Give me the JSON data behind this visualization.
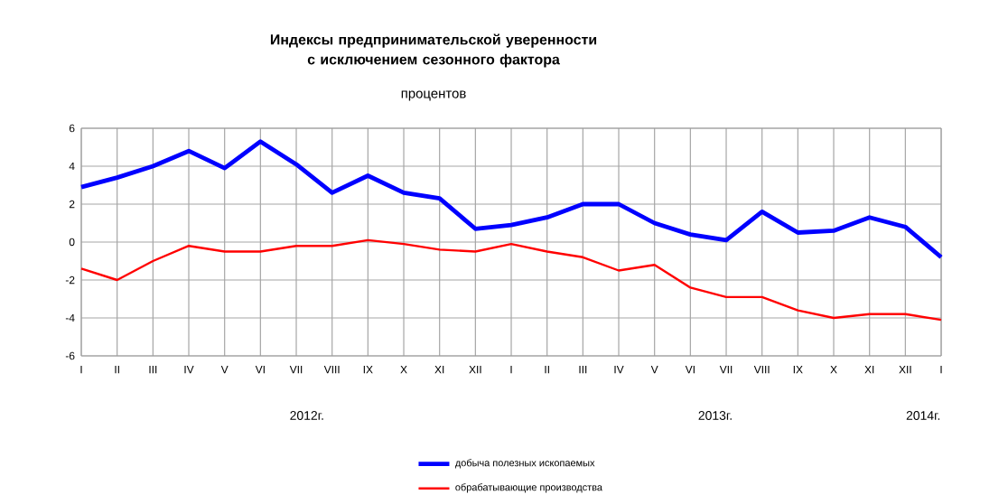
{
  "chart_data": {
    "type": "line",
    "title": "Индексы предпринимательской уверенности с исключением сезонного фактора",
    "subtitle": "процентов",
    "categories": [
      "I",
      "II",
      "III",
      "IV",
      "V",
      "VI",
      "VII",
      "VIII",
      "IX",
      "X",
      "XI",
      "XII",
      "I",
      "II",
      "III",
      "IV",
      "V",
      "VI",
      "VII",
      "VIII",
      "IX",
      "X",
      "XI",
      "XII",
      "I"
    ],
    "series": [
      {
        "name": "добыча полезных ископаемых",
        "color": "#0000ff",
        "values": [
          2.9,
          3.4,
          4.0,
          4.8,
          3.9,
          5.3,
          4.1,
          2.6,
          3.5,
          2.6,
          2.3,
          0.7,
          0.9,
          1.3,
          2.0,
          2.0,
          1.0,
          0.4,
          0.1,
          1.6,
          0.5,
          0.6,
          1.3,
          0.8,
          -0.8
        ]
      },
      {
        "name": "обрабатывающие производства",
        "color": "#ff0000",
        "values": [
          -1.4,
          -2.0,
          -1.0,
          -0.2,
          -0.5,
          -0.5,
          -0.2,
          -0.2,
          0.1,
          -0.1,
          -0.4,
          -0.5,
          -0.1,
          -0.5,
          -0.8,
          -1.5,
          -1.2,
          -2.4,
          -2.9,
          -2.9,
          -3.6,
          -4.0,
          -3.8,
          -3.8,
          -4.1
        ]
      }
    ],
    "ylim": [
      -6,
      6
    ],
    "yticks": [
      -6,
      -4,
      -2,
      0,
      2,
      4,
      6
    ],
    "grid": true,
    "legend": "bottom",
    "marker": "none",
    "line_style": "solid",
    "annotations": [
      "2012г.",
      "2013г.",
      "2014г."
    ]
  }
}
